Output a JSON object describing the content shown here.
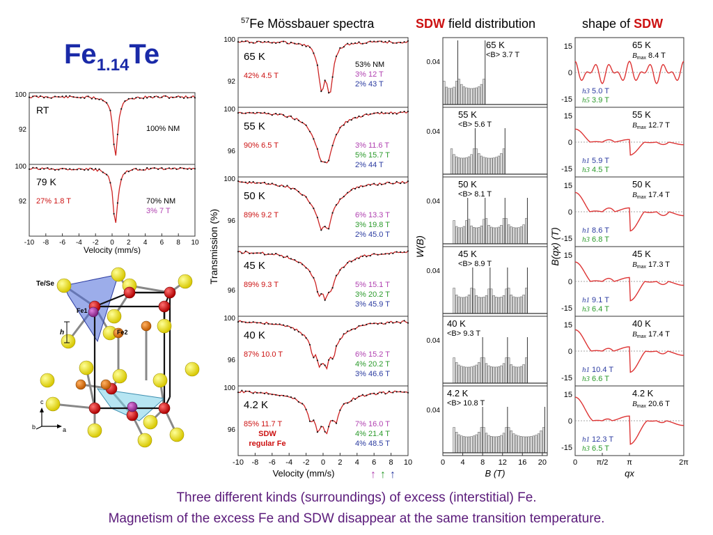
{
  "page": {
    "title_base": "Fe",
    "title_sub": "1.14",
    "title_tail": "Te",
    "col_moss_sup": "57",
    "col_moss_text": "Fe Mössbauer spectra",
    "col_sdw_red": "SDW",
    "col_sdw_text": " field distribution",
    "col_shape_text": "shape of ",
    "col_shape_red": "SDW",
    "footer_line1": "Three different kinds (surroundings) of excess (interstitial) Fe.",
    "footer_line2": "Magnetism of the excess Fe and SDW disappear at the same transition temperature.",
    "colors": {
      "title": "#1a2aa8",
      "accent_red": "#cc1111",
      "footer": "#5a1a7a",
      "nm_purple": "#b040b0",
      "green": "#2a9a2a",
      "blue": "#2a3aa0"
    }
  },
  "chart_data": [
    {
      "type": "line",
      "id": "left-mossbauer",
      "xlabel": "Velocity (mm/s)",
      "xlim": [
        -10,
        10
      ],
      "x_ticks": [
        "-10",
        "-8",
        "-6",
        "-4",
        "-2",
        "0",
        "2",
        "4",
        "6",
        "8",
        "10"
      ],
      "panels": [
        {
          "temp": "RT",
          "y_ticks": [
            "100",
            "92"
          ],
          "annotations": [
            {
              "text": "100%  NM",
              "color": "#000000"
            }
          ],
          "dips": [
            {
              "center": 0.4,
              "width": 0.35,
              "depth": 0.95
            }
          ]
        },
        {
          "temp": "79 K",
          "y_ticks": [
            "100",
            "92"
          ],
          "annotations": [
            {
              "text": "27%   1.8 T",
              "color": "#cc1111"
            },
            {
              "text": "70%  NM",
              "color": "#000000"
            },
            {
              "text": "3%    7 T",
              "color": "#b040b0"
            }
          ],
          "dips": [
            {
              "center": 0.4,
              "width": 0.35,
              "depth": 0.9
            }
          ]
        }
      ]
    },
    {
      "type": "line",
      "id": "mossbauer-spectra",
      "ylabel": "Transmission (%)",
      "xlabel": "Velocity (mm/s)",
      "xlim": [
        -10,
        10
      ],
      "x_ticks": [
        "-10",
        "-8",
        "-6",
        "-4",
        "-2",
        "0",
        "2",
        "4",
        "6",
        "8",
        "10"
      ],
      "panels": [
        {
          "temp": "65 K",
          "y_ticks": [
            "100",
            "92"
          ],
          "left_ann": [
            {
              "text": "42%   4.5 T",
              "color": "#cc1111"
            }
          ],
          "right_ann": [
            {
              "text": "53%   NM",
              "color": "#000000"
            },
            {
              "text": "3%    12 T",
              "color": "#b040b0"
            },
            {
              "text": "2%    43 T",
              "color": "#2a3aa0"
            }
          ],
          "dips": [
            {
              "center": -0.2,
              "width": 0.45,
              "depth": 0.7
            },
            {
              "center": 0.8,
              "width": 0.45,
              "depth": 0.75
            }
          ]
        },
        {
          "temp": "55 K",
          "y_ticks": [
            "100",
            "96"
          ],
          "left_ann": [
            {
              "text": "90%   6.5 T",
              "color": "#cc1111"
            }
          ],
          "right_ann": [
            {
              "text": "3%    11.6 T",
              "color": "#b040b0"
            },
            {
              "text": "5%    15.7 T",
              "color": "#2a9a2a"
            },
            {
              "text": "2%    44 T",
              "color": "#2a3aa0"
            }
          ],
          "dips": [
            {
              "center": 0.1,
              "width": 1.5,
              "depth": 0.7
            },
            {
              "center": -0.3,
              "width": 0.35,
              "depth": 0.15
            },
            {
              "center": 0.6,
              "width": 0.35,
              "depth": 0.2
            }
          ]
        },
        {
          "temp": "50 K",
          "y_ticks": [
            "100",
            "96"
          ],
          "left_ann": [
            {
              "text": "89%   9.2 T",
              "color": "#cc1111"
            }
          ],
          "right_ann": [
            {
              "text": "6%    13.3 T",
              "color": "#b040b0"
            },
            {
              "text": "3%    19.8 T",
              "color": "#2a9a2a"
            },
            {
              "text": "2%    45.0 T",
              "color": "#2a3aa0"
            }
          ],
          "dips": [
            {
              "center": 0.1,
              "width": 1.8,
              "depth": 0.62
            },
            {
              "center": -0.3,
              "width": 0.35,
              "depth": 0.18
            },
            {
              "center": 0.6,
              "width": 0.35,
              "depth": 0.2
            }
          ]
        },
        {
          "temp": "45 K",
          "y_ticks": [
            "96"
          ],
          "left_ann": [
            {
              "text": "89%   9.3 T",
              "color": "#cc1111"
            }
          ],
          "right_ann": [
            {
              "text": "5%    15.1 T",
              "color": "#b040b0"
            },
            {
              "text": "3%    20.2 T",
              "color": "#2a9a2a"
            },
            {
              "text": "3%    45.9 T",
              "color": "#2a3aa0"
            }
          ],
          "dips": [
            {
              "center": 0.1,
              "width": 2.0,
              "depth": 0.58
            },
            {
              "center": -0.5,
              "width": 0.3,
              "depth": 0.18
            },
            {
              "center": 0.3,
              "width": 0.3,
              "depth": 0.2
            },
            {
              "center": 1.0,
              "width": 0.3,
              "depth": 0.15
            }
          ]
        },
        {
          "temp": "40 K",
          "y_ticks": [
            "100",
            "96"
          ],
          "left_ann": [
            {
              "text": "87%   10.0 T",
              "color": "#cc1111"
            }
          ],
          "right_ann": [
            {
              "text": "6%    15.2 T",
              "color": "#b040b0"
            },
            {
              "text": "4%    20.2 T",
              "color": "#2a9a2a"
            },
            {
              "text": "3%    46.6 T",
              "color": "#2a3aa0"
            }
          ],
          "dips": [
            {
              "center": 0.1,
              "width": 2.1,
              "depth": 0.5
            },
            {
              "center": -1.2,
              "width": 0.3,
              "depth": 0.2
            },
            {
              "center": -0.4,
              "width": 0.3,
              "depth": 0.25
            },
            {
              "center": 0.4,
              "width": 0.3,
              "depth": 0.25
            },
            {
              "center": 1.2,
              "width": 0.3,
              "depth": 0.2
            }
          ]
        },
        {
          "temp": "4.2 K",
          "y_ticks": [
            "100",
            "96"
          ],
          "left_ann": [
            {
              "text": "85%   11.7 T",
              "color": "#cc1111"
            }
          ],
          "right_ann": [
            {
              "text": "7%    16.0 T",
              "color": "#b040b0"
            },
            {
              "text": "4%    21.4 T",
              "color": "#2a9a2a"
            },
            {
              "text": "4%    48.5 T",
              "color": "#2a3aa0"
            }
          ],
          "sdw_label": [
            "SDW",
            "regular Fe"
          ],
          "dips": [
            {
              "center": 0.1,
              "width": 2.3,
              "depth": 0.45
            },
            {
              "center": -1.5,
              "width": 0.3,
              "depth": 0.2
            },
            {
              "center": -0.6,
              "width": 0.3,
              "depth": 0.25
            },
            {
              "center": 0.4,
              "width": 0.3,
              "depth": 0.25
            },
            {
              "center": 1.5,
              "width": 0.3,
              "depth": 0.2
            }
          ]
        }
      ],
      "arrows": [
        {
          "glyph": "↑",
          "color": "#b040b0"
        },
        {
          "glyph": "↑",
          "color": "#2a9a2a"
        },
        {
          "glyph": "↑",
          "color": "#2a3aa0"
        }
      ]
    },
    {
      "type": "bar",
      "id": "sdw-field-distribution",
      "ylabel": "W(B)",
      "xlabel": "B (T)",
      "xlim": [
        0,
        21
      ],
      "x_ticks": [
        "0",
        "4",
        "8",
        "12",
        "16",
        "20"
      ],
      "y_tick": "0.04",
      "panels": [
        {
          "temp": "65 K",
          "avg_label": "<B>",
          "avg_value": "3.7 T",
          "edges": [
            0,
            3.0,
            8.5
          ]
        },
        {
          "temp": "55 K",
          "avg_label": "<B>",
          "avg_value": "5.6 T",
          "edges": [
            1.5,
            6.5,
            12.5
          ]
        },
        {
          "temp": "50 K",
          "avg_label": "<B>",
          "avg_value": "8.1 T",
          "edges": [
            2,
            5,
            8.5,
            12.5,
            17
          ]
        },
        {
          "temp": "45 K",
          "avg_label": "<B>",
          "avg_value": "8.9 T",
          "edges": [
            2,
            6,
            9.5,
            13,
            17
          ]
        },
        {
          "temp": "40 K",
          "avg_label": "<B>",
          "avg_value": "9.3 T",
          "edges": [
            2,
            8,
            13,
            17
          ]
        },
        {
          "temp": "4.2 K",
          "avg_label": "<B>",
          "avg_value": "10.8 T",
          "edges": [
            2,
            8,
            13,
            20.5
          ]
        }
      ]
    },
    {
      "type": "line",
      "id": "sdw-shape",
      "ylabel": "B(qx) (T)",
      "xlabel": "qx",
      "x_ticks": [
        "0",
        "π/2",
        "π",
        "2π"
      ],
      "y_ticks": [
        "15",
        "0",
        "-15"
      ],
      "panels": [
        {
          "temp": "65 K",
          "bmax_label": "B",
          "bmax_sub": "max",
          "bmax_value": "8.4 T",
          "harm": [
            {
              "h": "h3",
              "value": "5.0 T",
              "color": "#2a3aa0"
            },
            {
              "h": "h5",
              "value": "3.9 T",
              "color": "#2a9a2a"
            }
          ],
          "amps": [
            5.0,
            3.9
          ],
          "orders": [
            3,
            5
          ],
          "square": false
        },
        {
          "temp": "55 K",
          "bmax_label": "B",
          "bmax_sub": "max",
          "bmax_value": "12.7 T",
          "harm": [
            {
              "h": "h1",
              "value": "5.9 T",
              "color": "#2a3aa0"
            },
            {
              "h": "h3",
              "value": "4.5 T",
              "color": "#2a9a2a"
            }
          ],
          "amps": [
            5.9,
            4.5
          ],
          "orders": [
            1,
            3
          ],
          "square": true
        },
        {
          "temp": "50 K",
          "bmax_label": "B",
          "bmax_sub": "max",
          "bmax_value": "17.4 T",
          "harm": [
            {
              "h": "h1",
              "value": "8.6 T",
              "color": "#2a3aa0"
            },
            {
              "h": "h3",
              "value": "6.8 T",
              "color": "#2a9a2a"
            }
          ],
          "amps": [
            8.6,
            6.8
          ],
          "orders": [
            1,
            3
          ],
          "square": true
        },
        {
          "temp": "45 K",
          "bmax_label": "B",
          "bmax_sub": "max",
          "bmax_value": "17.3 T",
          "harm": [
            {
              "h": "h1",
              "value": "9.1 T",
              "color": "#2a3aa0"
            },
            {
              "h": "h3",
              "value": "6.4 T",
              "color": "#2a9a2a"
            }
          ],
          "amps": [
            9.1,
            6.4
          ],
          "orders": [
            1,
            3
          ],
          "square": true
        },
        {
          "temp": "40 K",
          "bmax_label": "B",
          "bmax_sub": "max",
          "bmax_value": "17.4 T",
          "harm": [
            {
              "h": "h1",
              "value": "10.4 T",
              "color": "#2a3aa0"
            },
            {
              "h": "h3",
              "value": "6.6 T",
              "color": "#2a9a2a"
            }
          ],
          "amps": [
            10.4,
            6.6
          ],
          "orders": [
            1,
            3
          ],
          "square": true
        },
        {
          "temp": "4.2 K",
          "bmax_label": "B",
          "bmax_sub": "max",
          "bmax_value": "20.6 T",
          "harm": [
            {
              "h": "h1",
              "value": "12.3 T",
              "color": "#2a3aa0"
            },
            {
              "h": "h3",
              "value": "6.5 T",
              "color": "#2a9a2a"
            }
          ],
          "amps": [
            12.3,
            6.5
          ],
          "orders": [
            1,
            3
          ],
          "square": true
        }
      ]
    }
  ],
  "structure": {
    "labels": {
      "tese": "Te/Se",
      "fe1": "Fe1",
      "fe2": "Fe2",
      "h": "h",
      "axis_c": "c",
      "axis_b": "b",
      "axis_a": "a"
    }
  }
}
